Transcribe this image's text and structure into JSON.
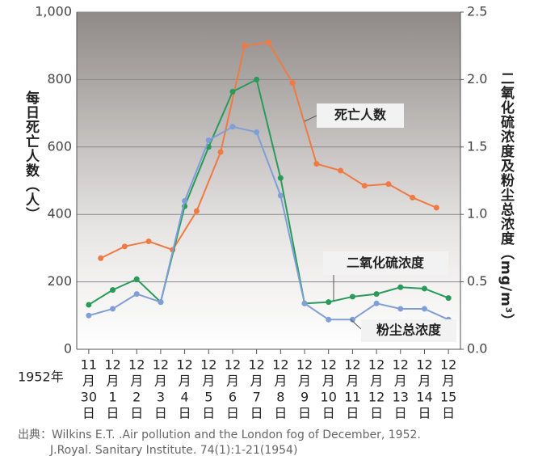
{
  "chart_data": {
    "type": "line",
    "x_prefix": "1952年",
    "ylabel": "每日死亡人数（人）",
    "y2label": "二氧化硫浓度及粉尘总浓度（mg/m³）",
    "source": [
      "出典：Wilkins E.T. .Air pollution and the London fog of December, 1952.",
      "J.Royal. Sanitary Institute. 74(1):1-21(1954)"
    ],
    "categories": [
      [
        "11",
        "月",
        "30",
        "日"
      ],
      [
        "12",
        "月",
        "1",
        "日"
      ],
      [
        "12",
        "月",
        "2",
        "日"
      ],
      [
        "12",
        "月",
        "3",
        "日"
      ],
      [
        "12",
        "月",
        "4",
        "日"
      ],
      [
        "12",
        "月",
        "5",
        "日"
      ],
      [
        "12",
        "月",
        "6",
        "日"
      ],
      [
        "12",
        "月",
        "7",
        "日"
      ],
      [
        "12",
        "月",
        "8",
        "日"
      ],
      [
        "12",
        "月",
        "9",
        "日"
      ],
      [
        "12",
        "月",
        "10",
        "日"
      ],
      [
        "12",
        "月",
        "11",
        "日"
      ],
      [
        "12",
        "月",
        "12",
        "日"
      ],
      [
        "12",
        "月",
        "13",
        "日"
      ],
      [
        "12",
        "月",
        "14",
        "日"
      ],
      [
        "12",
        "月",
        "15",
        "日"
      ]
    ],
    "series": [
      {
        "name": "死亡人数",
        "color": "#f07a42",
        "axis": "y",
        "values": [
          270,
          305,
          320,
          295,
          410,
          585,
          900,
          910,
          790,
          550,
          530,
          485,
          490,
          450,
          420,
          null
        ]
      },
      {
        "name": "二氧化硫浓度",
        "color": "#2a9a5a",
        "axis": "y2",
        "values": [
          0.33,
          0.44,
          0.52,
          0.35,
          1.06,
          1.5,
          1.91,
          2.0,
          1.27,
          0.34,
          0.35,
          0.39,
          0.41,
          0.46,
          0.45,
          0.38
        ]
      },
      {
        "name": "粉尘总浓度",
        "color": "#7f9fd6",
        "axis": "y2",
        "values": [
          0.25,
          0.3,
          0.41,
          0.35,
          1.1,
          1.55,
          1.65,
          1.61,
          1.14,
          0.34,
          0.22,
          0.22,
          0.34,
          0.3,
          0.3,
          0.22
        ]
      }
    ],
    "ylim": [
      0,
      1000
    ],
    "yticks": [
      0,
      200,
      400,
      600,
      800,
      {
        "value": 1000,
        "label": "1,000"
      }
    ],
    "y2lim": [
      0,
      2.5
    ],
    "y2ticks": [
      {
        "value": 0,
        "label": "0.0"
      },
      0.5,
      {
        "value": 1,
        "label": "1.0"
      },
      1.5,
      {
        "value": 2,
        "label": "2.0"
      },
      2.5
    ],
    "grid": true
  }
}
